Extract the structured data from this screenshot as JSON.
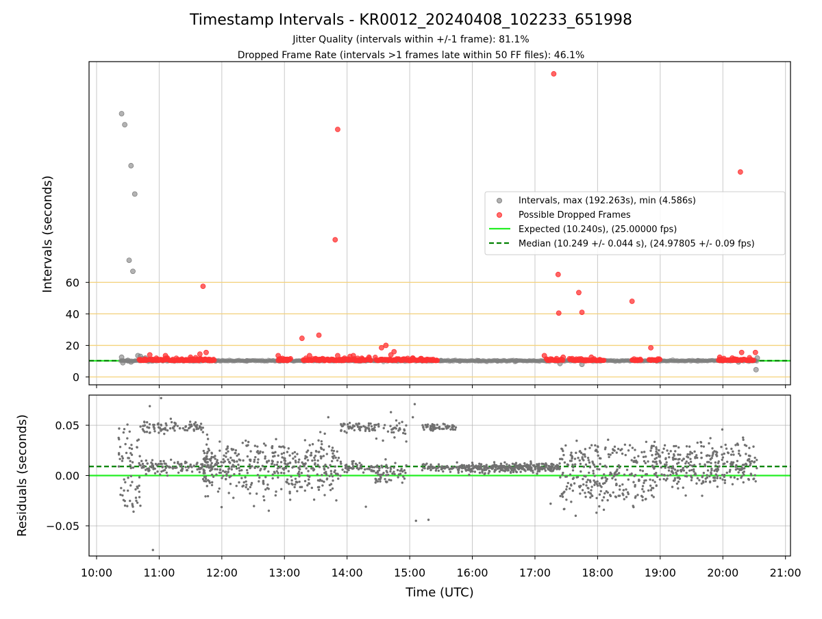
{
  "chart_data": {
    "title": "Timestamp Intervals - KR0012_20240408_102233_651998",
    "subtitle_lines": [
      "Jitter Quality (intervals within +/-1 frame): 81.1%",
      "Dropped Frame Rate (intervals >1 frames late within 50 FF files): 46.1%"
    ],
    "xlabel": "Time (UTC)",
    "x_ticks": [
      "10:00",
      "11:00",
      "12:00",
      "13:00",
      "14:00",
      "15:00",
      "16:00",
      "17:00",
      "18:00",
      "19:00",
      "20:00",
      "21:00"
    ],
    "xlim_hours": [
      9.88,
      21.08
    ],
    "panels": [
      {
        "name": "intervals",
        "type": "scatter",
        "ylabel": "Intervals (seconds)",
        "ylim": [
          -5,
          200
        ],
        "y_ticks": [
          0,
          20,
          40,
          60
        ],
        "grid": true,
        "legend_position": "center-right",
        "reference_lines": [
          {
            "name": "Expected (10.240s), (25.00000 fps)",
            "y": 10.24,
            "color": "#22ee22",
            "style": "solid"
          },
          {
            "name": "Median (10.249 +/- 0.044 s), (24.97805 +/- 0.09 fps)",
            "y": 10.249,
            "color": "#008000",
            "style": "dashed"
          }
        ],
        "threshold_lines": {
          "color": "#f5d27a",
          "y": [
            0,
            20,
            40,
            60
          ]
        },
        "series": [
          {
            "name": "Intervals, max (192.263s), min (4.586s)",
            "color": "#808080",
            "points": [
              [
                10.4,
                167.0
              ],
              [
                10.45,
                160.0
              ],
              [
                10.55,
                134.0
              ],
              [
                10.61,
                116.0
              ],
              [
                10.52,
                74.0
              ],
              [
                10.58,
                67.0
              ],
              [
                10.4,
                12.5
              ],
              [
                10.42,
                9.0
              ],
              [
                10.5,
                10.5
              ],
              [
                10.55,
                9.5
              ],
              [
                10.66,
                13.5
              ],
              [
                10.7,
                13.0
              ],
              [
                10.73,
                11.5
              ],
              [
                10.78,
                12.0
              ],
              [
                15.2,
                10.2
              ],
              [
                15.5,
                10.4
              ],
              [
                15.8,
                10.1
              ],
              [
                16.1,
                10.3
              ],
              [
                16.4,
                10.2
              ],
              [
                16.7,
                10.2
              ],
              [
                17.4,
                8.5
              ],
              [
                17.75,
                8.0
              ],
              [
                20.25,
                9.5
              ],
              [
                20.5,
                10.5
              ],
              [
                20.55,
                12.0
              ],
              [
                20.53,
                4.6
              ],
              [
                11.9,
                10.2
              ],
              [
                12.4,
                10.2
              ],
              [
                19.6,
                10.2
              ]
            ]
          },
          {
            "name": "Possible Dropped Frames",
            "color": "#ff3333",
            "points": [
              [
                17.3,
                192.26
              ],
              [
                13.85,
                157.0
              ],
              [
                20.28,
                130.0
              ],
              [
                13.81,
                87.0
              ],
              [
                17.37,
                65.0
              ],
              [
                11.7,
                57.5
              ],
              [
                17.7,
                53.5
              ],
              [
                18.55,
                48.0
              ],
              [
                17.75,
                41.0
              ],
              [
                17.38,
                40.5
              ],
              [
                13.55,
                26.5
              ],
              [
                13.28,
                24.5
              ],
              [
                14.62,
                20.0
              ],
              [
                14.55,
                18.5
              ],
              [
                18.85,
                18.5
              ],
              [
                14.75,
                16.0
              ],
              [
                11.75,
                15.5
              ],
              [
                20.3,
                15.5
              ],
              [
                20.52,
                15.5
              ],
              [
                11.65,
                14.5
              ],
              [
                10.85,
                14.0
              ],
              [
                12.9,
                13.5
              ],
              [
                13.4,
                13.5
              ],
              [
                13.85,
                13.5
              ],
              [
                14.1,
                13.5
              ],
              [
                14.7,
                14.0
              ],
              [
                11.1,
                13.5
              ],
              [
                11.5,
                12.5
              ],
              [
                17.15,
                13.5
              ],
              [
                17.45,
                12.5
              ],
              [
                17.9,
                12.5
              ],
              [
                19.95,
                12.5
              ],
              [
                20.15,
                12.0
              ],
              [
                14.35,
                12.5
              ],
              [
                15.05,
                12.0
              ]
            ],
            "band_segments_hours": [
              [
                10.68,
                11.88
              ],
              [
                12.9,
                13.1
              ],
              [
                13.3,
                14.38
              ],
              [
                14.45,
                15.45
              ],
              [
                17.18,
                17.45
              ],
              [
                17.55,
                18.1
              ],
              [
                18.55,
                18.7
              ],
              [
                18.82,
                19.0
              ],
              [
                19.93,
                20.5
              ]
            ],
            "band_y": 10.3
          }
        ]
      },
      {
        "name": "residuals",
        "type": "scatter",
        "ylabel": "Residuals (seconds)",
        "ylim": [
          -0.08,
          0.08
        ],
        "y_ticks": [
          -0.05,
          0.0,
          0.05
        ],
        "y_tick_labels": [
          "−0.05",
          "0.00",
          "0.05"
        ],
        "grid": true,
        "reference_lines": [
          {
            "y": 0.0,
            "color": "#22ee22",
            "style": "solid"
          },
          {
            "y": 0.009,
            "color": "#008000",
            "style": "dashed"
          }
        ],
        "series": [
          {
            "color": "#707070",
            "time_range_hours": [
              10.35,
              20.55
            ],
            "distribution_segments": [
              {
                "from": 10.35,
                "to": 10.7,
                "levels": [
                  0.008,
                  0.035,
                  -0.015
                ],
                "spread": 0.018
              },
              {
                "from": 10.7,
                "to": 11.4,
                "levels": [
                  0.048,
                  0.008
                ],
                "spread": 0.006
              },
              {
                "from": 11.4,
                "to": 11.7,
                "levels": [
                  0.048,
                  0.008
                ],
                "spread": 0.005
              },
              {
                "from": 11.7,
                "to": 11.85,
                "levels": [
                  0.01
                ],
                "spread": 0.01
              },
              {
                "from": 11.7,
                "to": 13.9,
                "levels": [
                  0.02,
                  -0.005,
                  0.01
                ],
                "spread": 0.015
              },
              {
                "from": 13.9,
                "to": 14.45,
                "levels": [
                  0.048,
                  0.008
                ],
                "spread": 0.004
              },
              {
                "from": 14.45,
                "to": 14.95,
                "levels": [
                  0.045,
                  0.01,
                  -0.002
                ],
                "spread": 0.008
              },
              {
                "from": 15.2,
                "to": 15.75,
                "levels": [
                  0.048,
                  0.008
                ],
                "spread": 0.003
              },
              {
                "from": 15.75,
                "to": 17.4,
                "levels": [
                  0.008
                ],
                "spread": 0.004
              },
              {
                "from": 17.4,
                "to": 18.9,
                "levels": [
                  0.02,
                  0.0,
                  -0.012
                ],
                "spread": 0.014
              },
              {
                "from": 18.9,
                "to": 20.55,
                "levels": [
                  0.02,
                  0.002
                ],
                "spread": 0.012
              }
            ],
            "outliers": [
              [
                10.58,
                -0.031
              ],
              [
                10.7,
                -0.03
              ],
              [
                10.9,
                -0.074
              ],
              [
                11.03,
                0.077
              ],
              [
                10.85,
                0.069
              ],
              [
                12.75,
                -0.035
              ],
              [
                14.3,
                -0.031
              ],
              [
                15.1,
                -0.045
              ],
              [
                15.3,
                -0.044
              ],
              [
                15.08,
                0.071
              ],
              [
                17.65,
                -0.04
              ],
              [
                13.7,
                0.058
              ],
              [
                14.7,
                0.063
              ],
              [
                15.05,
                0.058
              ],
              [
                18.1,
                -0.034
              ],
              [
                17.25,
                -0.028
              ]
            ]
          }
        ]
      }
    ]
  }
}
